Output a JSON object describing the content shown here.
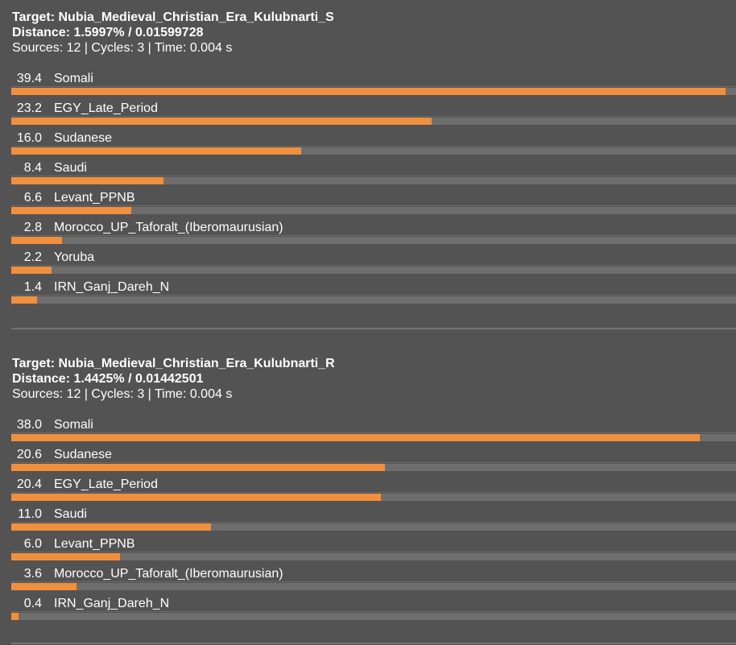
{
  "results": [
    {
      "target": "Target: Nubia_Medieval_Christian_Era_Kulubnarti_S",
      "distance": "Distance: 1.5997% / 0.01599728",
      "meta": "Sources: 12 | Cycles: 3 | Time: 0.004 s",
      "bar_max": 40,
      "rows": [
        {
          "value": "39.4",
          "label": "Somali",
          "pct": 39.4
        },
        {
          "value": "23.2",
          "label": "EGY_Late_Period",
          "pct": 23.2
        },
        {
          "value": "16.0",
          "label": "Sudanese",
          "pct": 16.0
        },
        {
          "value": "8.4",
          "label": "Saudi",
          "pct": 8.4
        },
        {
          "value": "6.6",
          "label": "Levant_PPNB",
          "pct": 6.6
        },
        {
          "value": "2.8",
          "label": "Morocco_UP_Taforalt_(Iberomaurusian)",
          "pct": 2.8
        },
        {
          "value": "2.2",
          "label": "Yoruba",
          "pct": 2.2
        },
        {
          "value": "1.4",
          "label": "IRN_Ganj_Dareh_N",
          "pct": 1.4
        }
      ]
    },
    {
      "target": "Target: Nubia_Medieval_Christian_Era_Kulubnarti_R",
      "distance": "Distance: 1.4425% / 0.01442501",
      "meta": "Sources: 12 | Cycles: 3 | Time: 0.004 s",
      "bar_max": 40,
      "rows": [
        {
          "value": "38.0",
          "label": "Somali",
          "pct": 38.0
        },
        {
          "value": "20.6",
          "label": "Sudanese",
          "pct": 20.6
        },
        {
          "value": "20.4",
          "label": "EGY_Late_Period",
          "pct": 20.4
        },
        {
          "value": "11.0",
          "label": "Saudi",
          "pct": 11.0
        },
        {
          "value": "6.0",
          "label": "Levant_PPNB",
          "pct": 6.0
        },
        {
          "value": "3.6",
          "label": "Morocco_UP_Taforalt_(Iberomaurusian)",
          "pct": 3.6
        },
        {
          "value": "0.4",
          "label": "IRN_Ganj_Dareh_N",
          "pct": 0.4
        }
      ]
    }
  ],
  "colors": {
    "background": "#535353",
    "bar_fill": "#f0903e",
    "bar_track": "#6e6e6e",
    "text": "#ffffff"
  }
}
